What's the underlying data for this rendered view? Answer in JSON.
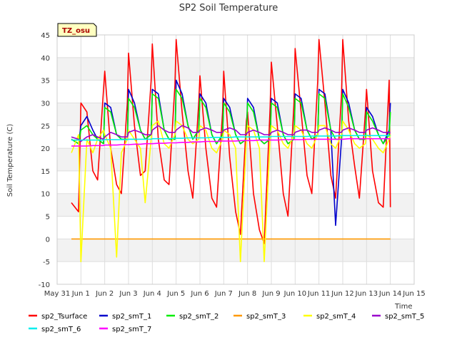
{
  "chart_data": {
    "type": "line",
    "title": "SP2 Soil Temperature",
    "xlabel": "Time",
    "ylabel": "Soil Temperature (C)",
    "tag": "TZ_osu",
    "xlim": [
      0,
      15
    ],
    "ylim": [
      -10,
      45
    ],
    "yticks": [
      -10,
      -5,
      0,
      5,
      10,
      15,
      20,
      25,
      30,
      35,
      40,
      45
    ],
    "xtick_labels": [
      "May 31",
      "Jun 1",
      "Jun 2",
      "Jun 3",
      "Jun 4",
      "Jun 5",
      "Jun 6",
      "Jun 7",
      "Jun 8",
      "Jun 9",
      "Jun 10",
      "Jun 11",
      "Jun 12",
      "Jun 13",
      "Jun 14",
      "Jun 15"
    ],
    "grid": true,
    "legend_position": "bottom",
    "x": [
      0.6,
      0.9,
      1.0,
      1.25,
      1.5,
      1.7,
      1.95,
      2.0,
      2.25,
      2.5,
      2.7,
      2.95,
      3.0,
      3.25,
      3.5,
      3.7,
      3.95,
      4.0,
      4.25,
      4.5,
      4.7,
      4.95,
      5.0,
      5.25,
      5.5,
      5.7,
      5.95,
      6.0,
      6.25,
      6.5,
      6.7,
      6.95,
      7.0,
      7.25,
      7.5,
      7.7,
      7.95,
      8.0,
      8.25,
      8.5,
      8.7,
      8.95,
      9.0,
      9.25,
      9.5,
      9.7,
      9.95,
      10.0,
      10.25,
      10.5,
      10.7,
      10.95,
      11.0,
      11.25,
      11.5,
      11.7,
      11.95,
      12.0,
      12.25,
      12.5,
      12.7,
      12.95,
      13.0,
      13.25,
      13.5,
      13.7,
      13.95,
      14.0
    ],
    "series": [
      {
        "name": "sp2_Tsurface",
        "color": "#ff0000",
        "values": [
          8,
          6,
          30,
          28,
          15,
          13,
          33,
          37,
          20,
          12,
          10,
          30,
          41,
          25,
          14,
          15,
          35,
          43,
          22,
          13,
          12,
          34,
          44,
          28,
          15,
          9,
          30,
          36,
          20,
          9,
          7,
          28,
          37,
          18,
          6,
          1,
          26,
          28,
          10,
          2,
          -1,
          29,
          39,
          25,
          10,
          5,
          30,
          42,
          28,
          14,
          10,
          35,
          44,
          30,
          14,
          9,
          32,
          44,
          26,
          16,
          9,
          28,
          33,
          15,
          8,
          7,
          35,
          7
        ]
      },
      {
        "name": "sp2_smT_1",
        "color": "#0000cc",
        "values": [
          22,
          21,
          25,
          27,
          24,
          22,
          21,
          30,
          29,
          23,
          22,
          22,
          33,
          30,
          24,
          22,
          23,
          33,
          32,
          24,
          22,
          22,
          35,
          32,
          25,
          22,
          24,
          32,
          30,
          23,
          21,
          23,
          31,
          29,
          23,
          21,
          22,
          31,
          29,
          22,
          21,
          22,
          31,
          30,
          23,
          21,
          22,
          32,
          31,
          24,
          22,
          23,
          33,
          32,
          24,
          3,
          22,
          33,
          30,
          24,
          22,
          22,
          29,
          27,
          23,
          21,
          24,
          30
        ]
      },
      {
        "name": "sp2_smT_2",
        "color": "#00ee00",
        "values": [
          22,
          21,
          24,
          25,
          23,
          22,
          21,
          29,
          28,
          23,
          22,
          22,
          31,
          29,
          24,
          22,
          23,
          32,
          31,
          24,
          22,
          22,
          33,
          31,
          25,
          22,
          24,
          31,
          29,
          23,
          21,
          23,
          30,
          28,
          23,
          21,
          22,
          30,
          28,
          22,
          21,
          22,
          30,
          29,
          23,
          21,
          22,
          31,
          30,
          24,
          22,
          23,
          32,
          31,
          24,
          22,
          22,
          32,
          29,
          24,
          22,
          22,
          28,
          26,
          23,
          21,
          23,
          28
        ]
      },
      {
        "name": "sp2_smT_3",
        "color": "#ff9900",
        "values": [
          0,
          0,
          0,
          0,
          0,
          0,
          0,
          0,
          0,
          0,
          0,
          0,
          0,
          0,
          0,
          0,
          0,
          0,
          0,
          0,
          0,
          0,
          0,
          0,
          0,
          0,
          0,
          0,
          0,
          0,
          0,
          0,
          0,
          0,
          0,
          0,
          0,
          0,
          0,
          0,
          0,
          0,
          0,
          0,
          0,
          0,
          0,
          0,
          0,
          0,
          0,
          0,
          0,
          0,
          0,
          0,
          0,
          0,
          0,
          0,
          0,
          0,
          0,
          0,
          0,
          0,
          0,
          0
        ]
      },
      {
        "name": "sp2_smT_4",
        "color": "#ffff00",
        "values": [
          19,
          23,
          -5,
          22,
          19,
          22,
          24,
          23,
          20,
          -4,
          19,
          22,
          24,
          22,
          20,
          8,
          22,
          25,
          26,
          21,
          20,
          23,
          26,
          25,
          22,
          21,
          22,
          25,
          24,
          20,
          19,
          22,
          24,
          23,
          20,
          -5,
          22,
          25,
          24,
          20,
          -5,
          22,
          25,
          24,
          21,
          20,
          23,
          25,
          24,
          21,
          20,
          23,
          25,
          25,
          21,
          20,
          23,
          26,
          24,
          21,
          20,
          21,
          23,
          22,
          20,
          19,
          22,
          23
        ]
      },
      {
        "name": "sp2_smT_5",
        "color": "#9900cc",
        "values": [
          22.5,
          22,
          21.5,
          22.5,
          23,
          22.5,
          22,
          22.5,
          23.5,
          23,
          22.5,
          22.5,
          23.5,
          24,
          23.5,
          23,
          23,
          24,
          25,
          24,
          23.5,
          23.5,
          24,
          25,
          24.5,
          23.5,
          23.5,
          24,
          24.5,
          24,
          23.5,
          23.5,
          24,
          24.5,
          24,
          23,
          23,
          23.5,
          24,
          23.5,
          23,
          23,
          23.5,
          24,
          23.5,
          23,
          23,
          23.5,
          24,
          24,
          23.5,
          23.5,
          24,
          24.5,
          24,
          23.5,
          23.5,
          24,
          24.5,
          24,
          23.5,
          23.5,
          24,
          24.5,
          24,
          23.5,
          23.5,
          23.5
        ]
      },
      {
        "name": "sp2_smT_6",
        "color": "#00eeee",
        "values": [
          21.8,
          21.8,
          21.8,
          21.8,
          21.8,
          21.8,
          21.8,
          21.9,
          21.9,
          21.9,
          21.9,
          21.9,
          22.0,
          22.0,
          22.0,
          22.0,
          22.0,
          22.1,
          22.1,
          22.1,
          22.1,
          22.2,
          22.2,
          22.2,
          22.3,
          22.3,
          22.3,
          22.3,
          22.3,
          22.4,
          22.4,
          22.4,
          22.4,
          22.4,
          22.5,
          22.5,
          22.5,
          22.5,
          22.5,
          22.5,
          22.5,
          22.5,
          22.6,
          22.6,
          22.6,
          22.6,
          22.6,
          22.6,
          22.6,
          22.6,
          22.7,
          22.7,
          22.7,
          22.7,
          22.7,
          22.7,
          22.8,
          22.8,
          22.8,
          22.8,
          22.8,
          22.8,
          22.8,
          22.8,
          22.8,
          22.8,
          22.8,
          22.8
        ]
      },
      {
        "name": "sp2_smT_7",
        "color": "#ff00ff",
        "values": [
          20.5,
          20.5,
          20.5,
          20.5,
          20.6,
          20.6,
          20.6,
          20.7,
          20.7,
          20.7,
          20.8,
          20.8,
          20.8,
          20.9,
          20.9,
          21.0,
          21.0,
          21.0,
          21.1,
          21.1,
          21.2,
          21.2,
          21.2,
          21.3,
          21.3,
          21.4,
          21.4,
          21.4,
          21.5,
          21.5,
          21.5,
          21.6,
          21.6,
          21.6,
          21.6,
          21.7,
          21.7,
          21.7,
          21.7,
          21.8,
          21.8,
          21.8,
          21.8,
          21.8,
          21.9,
          21.9,
          21.9,
          21.9,
          21.9,
          22.0,
          22.0,
          22.0,
          22.0,
          22.0,
          22.0,
          22.0,
          22.0,
          22.0,
          22.1,
          22.1,
          22.1,
          22.1,
          22.1,
          22.1,
          22.1,
          22.1,
          22.1,
          22.1
        ]
      }
    ]
  }
}
